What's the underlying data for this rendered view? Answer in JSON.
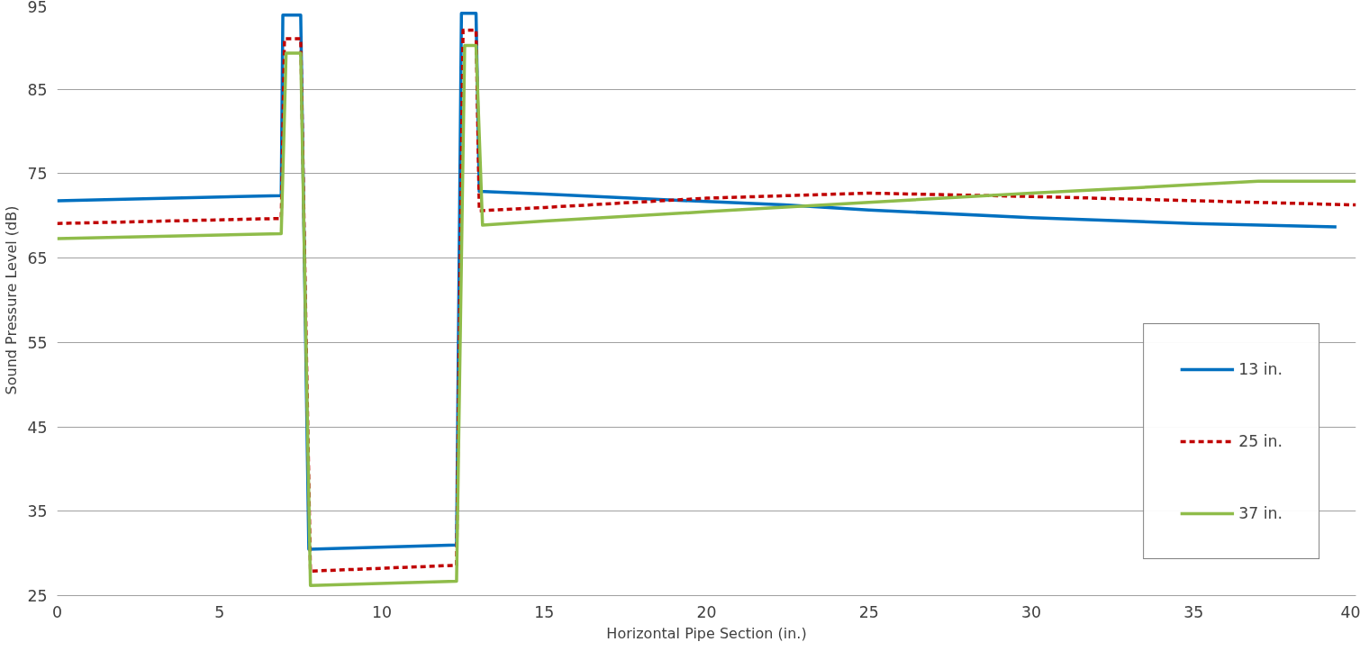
{
  "chart_data": {
    "type": "line",
    "xlabel": "Horizontal Pipe Section (in.)",
    "ylabel": "Sound Pressure Level (dB)",
    "xlim": [
      0,
      40
    ],
    "xticks": [
      0,
      5,
      10,
      15,
      20,
      25,
      30,
      35,
      40
    ],
    "ylim": [
      25,
      95
    ],
    "yticks": [
      25,
      35,
      45,
      55,
      65,
      75,
      85,
      95
    ],
    "grid": "y",
    "legend": "bottom right",
    "series": [
      {
        "name": "13 in.",
        "color": "#0070c0",
        "line_style": "solid",
        "x": [
          0,
          6.9,
          6.95,
          7.5,
          7.75,
          12.3,
          12.45,
          12.9,
          13.0,
          15,
          20,
          22.4,
          25,
          30,
          35,
          39.4
        ],
        "values": [
          71.8,
          72.4,
          93.8,
          93.8,
          30.5,
          31.0,
          94.0,
          94.0,
          72.9,
          72.6,
          71.7,
          71.3,
          70.7,
          69.8,
          69.1,
          68.7
        ]
      },
      {
        "name": "25 in.",
        "color": "#c00000",
        "line_style": "dashed",
        "x": [
          0,
          6.9,
          7.0,
          7.5,
          7.8,
          12.3,
          12.5,
          12.9,
          13.0,
          15,
          20,
          25,
          30,
          35,
          40
        ],
        "values": [
          69.1,
          69.7,
          91.0,
          91.0,
          27.9,
          28.6,
          92.0,
          92.0,
          70.6,
          71.0,
          72.1,
          72.7,
          72.3,
          71.8,
          71.3
        ]
      },
      {
        "name": "37 in.",
        "color": "#8fbc4a",
        "line_style": "solid",
        "x": [
          0,
          6.9,
          7.05,
          7.5,
          7.8,
          12.3,
          12.55,
          12.9,
          13.1,
          15,
          20,
          25,
          30,
          35,
          37,
          40
        ],
        "values": [
          67.3,
          67.9,
          89.3,
          89.3,
          26.2,
          26.7,
          90.2,
          90.2,
          68.9,
          69.4,
          70.5,
          71.6,
          72.7,
          73.7,
          74.1,
          74.1
        ]
      }
    ]
  }
}
